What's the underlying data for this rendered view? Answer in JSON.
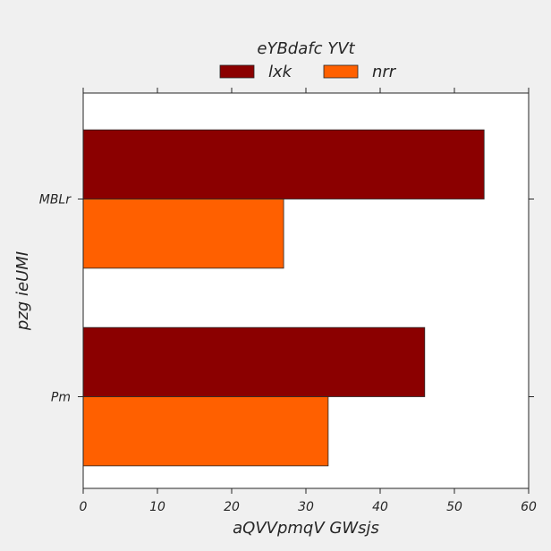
{
  "chart_data": {
    "type": "bar",
    "orientation": "horizontal",
    "title": "eYBdafc YVt",
    "xlabel": "aQVVpmqV GWsjs",
    "ylabel": "pzg ieUMI",
    "categories": [
      "MBLr",
      "Pm"
    ],
    "series": [
      {
        "name": "lxk",
        "color": "#8b0000",
        "values": [
          54,
          46
        ]
      },
      {
        "name": "nrr",
        "color": "#ff6000",
        "values": [
          27,
          33
        ]
      }
    ],
    "xlim": [
      0,
      60
    ],
    "xticks": [
      0,
      10,
      20,
      30,
      40,
      50,
      60
    ],
    "grid": false,
    "legend_position": "top"
  }
}
